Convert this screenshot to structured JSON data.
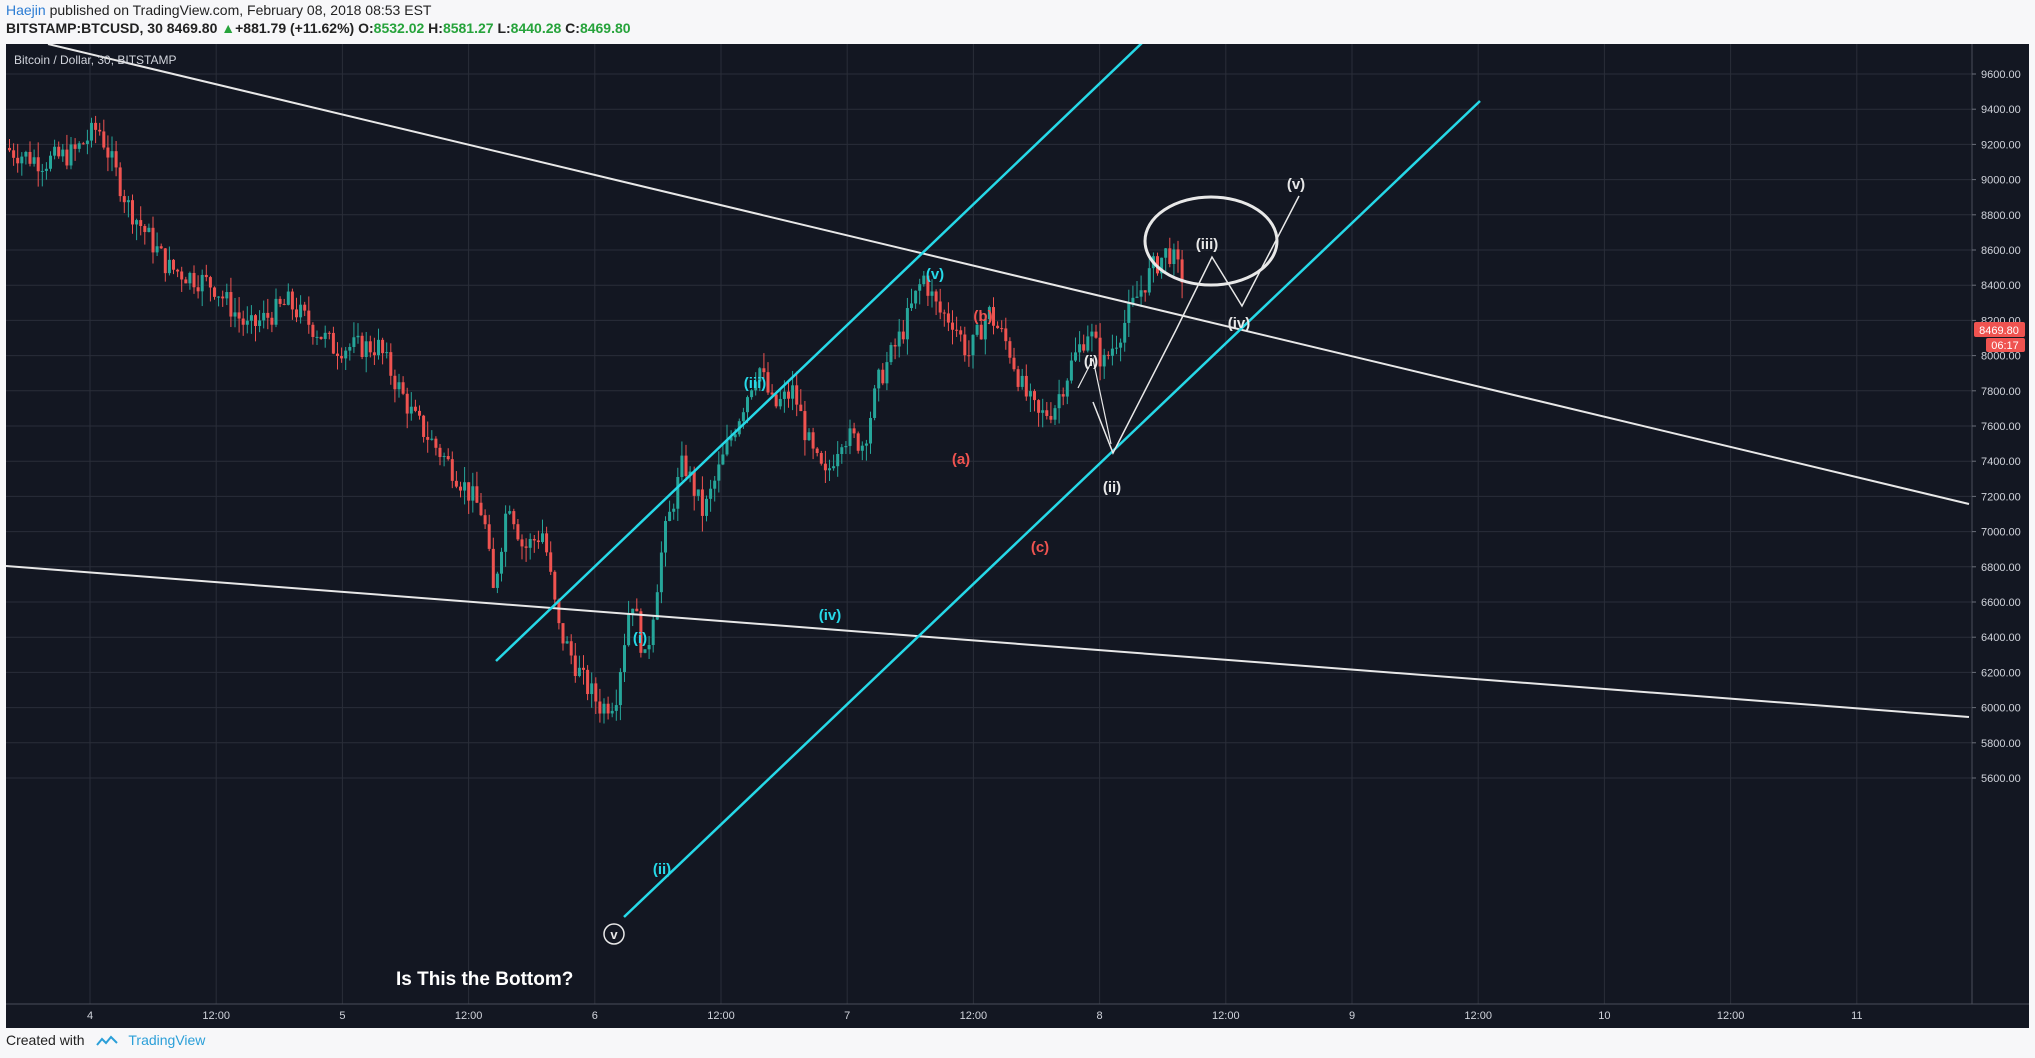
{
  "header": {
    "author": "Haejin",
    "published_text": "published on TradingView.com, February 08, 2018 08:53 EST",
    "symbol": "BITSTAMP:BTCUSD, 30",
    "last": "8469.80",
    "change": "+881.79 (+11.62%)",
    "o_label": "O:",
    "o": "8532.02",
    "h_label": "H:",
    "h": "8581.27",
    "l_label": "L:",
    "l": "8440.28",
    "c_label": "C:",
    "c": "8469.80"
  },
  "chart": {
    "legend": "Bitcoin / Dollar, 30, BITSTAMP",
    "price_labels": [
      "9600.00",
      "9400.00",
      "9200.00",
      "9000.00",
      "8800.00",
      "8600.00",
      "8400.00",
      "8200.00",
      "8000.00",
      "7800.00",
      "7600.00",
      "7400.00",
      "7200.00",
      "7000.00",
      "6800.00",
      "6600.00",
      "6400.00",
      "6200.00",
      "6000.00",
      "5800.00",
      "5600.00"
    ],
    "price_values": [
      9600,
      9400,
      9200,
      9000,
      8800,
      8600,
      8400,
      8200,
      8000,
      7800,
      7600,
      7400,
      7200,
      7000,
      6800,
      6600,
      6400,
      6200,
      6000,
      5800,
      5600
    ],
    "time_labels": [
      "4",
      "12:00",
      "5",
      "12:00",
      "6",
      "12:00",
      "7",
      "12:00",
      "8",
      "12:00",
      "9",
      "12:00",
      "10",
      "12:00",
      "11"
    ],
    "last_price_badge": "8469.80",
    "countdown_badge": "06:17",
    "annotation": "Is This the Bottom?",
    "wave_labels": {
      "v_bottom": "v",
      "i_cyan": "(i)",
      "ii_cyan": "(ii)",
      "iii_cyan": "(iii)",
      "iv_cyan": "(iv)",
      "v_cyan": "(v)",
      "a_red": "(a)",
      "b_red": "(b)",
      "c_red": "(c)",
      "i_white": "(i)",
      "ii_white": "(ii)",
      "iii_white": "(iii)",
      "iv_white": "(iv)",
      "v_white": "(v)"
    },
    "colors": {
      "background": "#131722",
      "grid": "#2a2e39",
      "up": "#26a69a",
      "down": "#ef5350",
      "cyan": "#26d9e8",
      "white_line": "#e8e8e8",
      "red_label": "#ef5350",
      "badge": "#ef5350"
    }
  },
  "footer": {
    "created_with": "Created with",
    "brand": "TradingView"
  }
}
